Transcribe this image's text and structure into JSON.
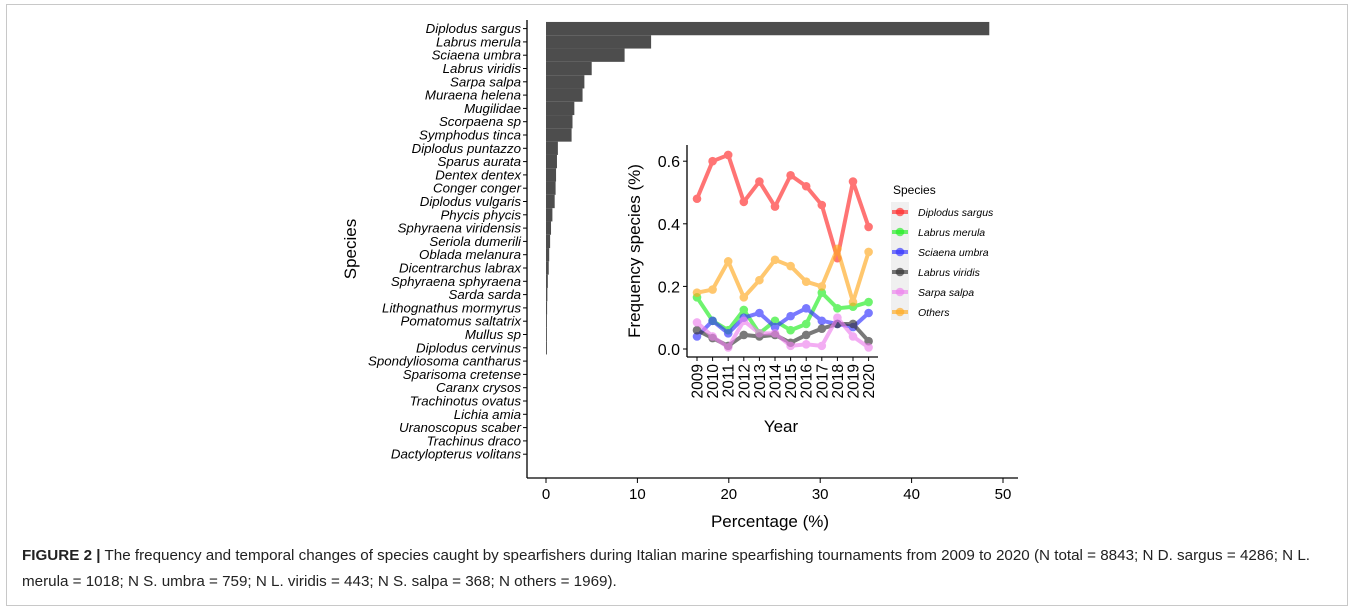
{
  "chart_data": [
    {
      "type": "bar",
      "orientation": "horizontal",
      "xlabel": "Percentage (%)",
      "ylabel": "Species",
      "xlim": [
        0,
        50
      ],
      "xticks": [
        "0",
        "10",
        "20",
        "30",
        "40",
        "50"
      ],
      "grid": false,
      "bar_color": "#4d4d4d",
      "categories": [
        "Diplodus sargus",
        "Labrus merula",
        "Sciaena umbra",
        "Labrus viridis",
        "Sarpa salpa",
        "Muraena helena",
        "Mugilidae",
        "Scorpaena sp",
        "Symphodus tinca",
        "Diplodus puntazzo",
        "Sparus aurata",
        "Dentex dentex",
        "Conger conger",
        "Diplodus vulgaris",
        "Phycis phycis",
        "Sphyraena viridensis",
        "Seriola dumerili",
        "Oblada melanura",
        "Dicentrarchus labrax",
        "Sphyraena sphyraena",
        "Sarda sarda",
        "Lithognathus mormyrus",
        "Pomatomus saltatrix",
        "Mullus sp",
        "Diplodus cervinus",
        "Spondyliosoma cantharus",
        "Sparisoma cretense",
        "Caranx crysos",
        "Trachinotus ovatus",
        "Lichia amia",
        "Uranoscopus scaber",
        "Trachinus draco",
        "Dactylopterus volitans"
      ],
      "values": [
        48.5,
        11.5,
        8.6,
        5.0,
        4.2,
        4.0,
        3.1,
        2.9,
        2.8,
        1.3,
        1.2,
        1.1,
        1.05,
        0.95,
        0.7,
        0.55,
        0.45,
        0.35,
        0.3,
        0.2,
        0.15,
        0.12,
        0.1,
        0.08,
        0.06,
        0,
        0,
        0,
        0,
        0,
        0,
        0,
        0
      ]
    },
    {
      "type": "line",
      "xlabel": "Year",
      "ylabel": "Frequency species (%)",
      "ylim": [
        -0.01,
        0.65
      ],
      "yticks": [
        "0.0",
        "0.2",
        "0.4",
        "0.6"
      ],
      "grid": false,
      "legend_title": "Species",
      "legend_position": "right",
      "x": [
        "2009",
        "2010",
        "2011",
        "2012",
        "2013",
        "2014",
        "2015",
        "2016",
        "2017",
        "2018",
        "2019",
        "2020"
      ],
      "series": [
        {
          "name": "Diplodus sargus",
          "color": "#ff2a2a",
          "values": [
            0.48,
            0.6,
            0.62,
            0.47,
            0.535,
            0.455,
            0.555,
            0.52,
            0.46,
            0.29,
            0.535,
            0.39
          ]
        },
        {
          "name": "Labrus merula",
          "color": "#22ee22",
          "values": [
            0.165,
            0.09,
            0.06,
            0.125,
            0.05,
            0.09,
            0.06,
            0.08,
            0.18,
            0.13,
            0.135,
            0.15
          ]
        },
        {
          "name": "Sciaena umbra",
          "color": "#3333ff",
          "values": [
            0.04,
            0.09,
            0.05,
            0.1,
            0.115,
            0.07,
            0.105,
            0.13,
            0.09,
            0.08,
            0.07,
            0.115
          ]
        },
        {
          "name": "Labrus viridis",
          "color": "#333333",
          "values": [
            0.06,
            0.035,
            0.01,
            0.045,
            0.04,
            0.045,
            0.02,
            0.045,
            0.065,
            0.08,
            0.08,
            0.025
          ]
        },
        {
          "name": "Sarpa salpa",
          "color": "#ee82ee",
          "values": [
            0.085,
            0.04,
            0.005,
            0.09,
            0.05,
            0.05,
            0.01,
            0.015,
            0.01,
            0.1,
            0.04,
            0.005
          ]
        },
        {
          "name": "Others",
          "color": "#ffaa22",
          "values": [
            0.18,
            0.19,
            0.28,
            0.165,
            0.22,
            0.285,
            0.265,
            0.215,
            0.2,
            0.32,
            0.15,
            0.31
          ]
        }
      ]
    }
  ],
  "caption": {
    "lead": "FIGURE 2 |",
    "text": "The frequency and temporal changes of species caught by spearfishers during Italian marine spearfishing tournaments from 2009 to 2020 (N total = 8843; N D. sargus = 4286; N L. merula = 1018; N S. umbra = 759; N L. viridis = 443; N S. salpa = 368; N others = 1969)."
  }
}
